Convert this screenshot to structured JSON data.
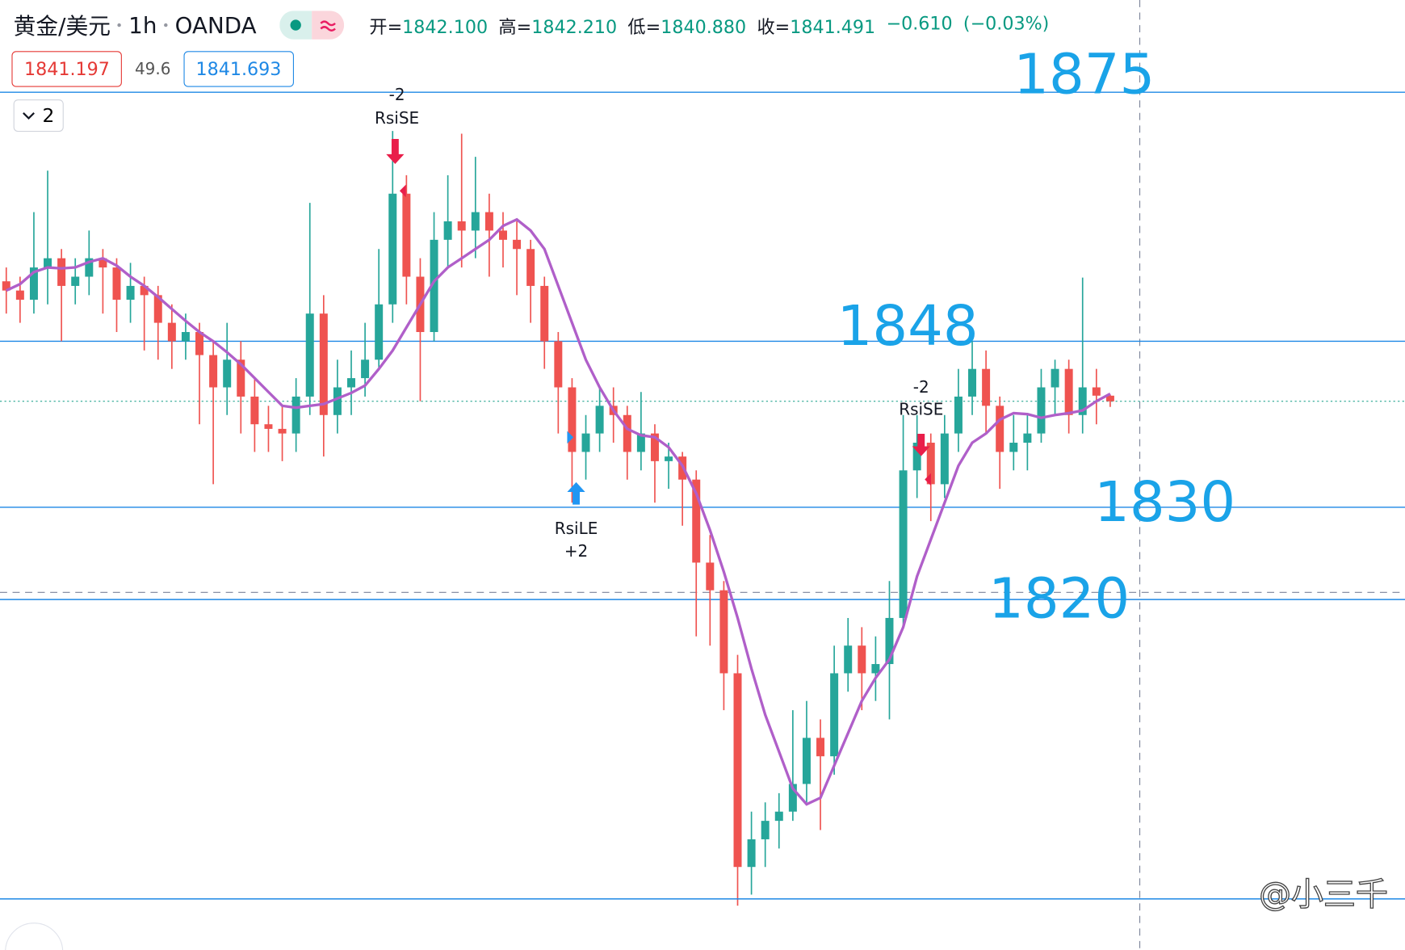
{
  "chart_data": {
    "type": "candlestick",
    "symbol": "黄金/美元",
    "interval": "1h",
    "source": "OANDA",
    "ohlc": [
      {
        "label": "开=",
        "value": "1842.100"
      },
      {
        "label": "高=",
        "value": "1842.210"
      },
      {
        "label": "低=",
        "value": "1840.880"
      },
      {
        "label": "收=",
        "value": "1841.491"
      }
    ],
    "change": "−0.610",
    "change_pct": "(−0.03%)",
    "bid": "1841.197",
    "spread": "49.6",
    "ask": "1841.693",
    "indicator_count": "2",
    "ylim": [
      1782,
      1885
    ],
    "up_color": "#26a69a",
    "down_color": "#ef5350",
    "ma_color": "#b05fc9",
    "level_color": "#1e88e5",
    "candles": [
      [
        1854.5,
        1856,
        1851,
        1853.5
      ],
      [
        1853.5,
        1855,
        1850,
        1852.5
      ],
      [
        1852.5,
        1862,
        1851,
        1856
      ],
      [
        1856,
        1866.5,
        1852,
        1857
      ],
      [
        1857,
        1858,
        1848,
        1854
      ],
      [
        1854,
        1857,
        1852,
        1855
      ],
      [
        1855,
        1860,
        1853,
        1857
      ],
      [
        1857,
        1858,
        1851,
        1856
      ],
      [
        1856,
        1857,
        1849,
        1852.5
      ],
      [
        1852.5,
        1856.5,
        1850,
        1854
      ],
      [
        1854,
        1855,
        1847,
        1853
      ],
      [
        1853,
        1854,
        1846,
        1850
      ],
      [
        1850,
        1852,
        1845,
        1848
      ],
      [
        1848,
        1851,
        1846,
        1849
      ],
      [
        1849,
        1850,
        1839,
        1846.5
      ],
      [
        1846.5,
        1848,
        1832.5,
        1843
      ],
      [
        1843,
        1850,
        1840,
        1846
      ],
      [
        1846,
        1848,
        1838,
        1842
      ],
      [
        1842,
        1844,
        1836,
        1839
      ],
      [
        1839,
        1841,
        1836,
        1838.5
      ],
      [
        1838.5,
        1841,
        1835,
        1838
      ],
      [
        1838,
        1844,
        1836,
        1842
      ],
      [
        1842,
        1863,
        1840,
        1851
      ],
      [
        1851,
        1853,
        1835.5,
        1840
      ],
      [
        1840,
        1846,
        1838,
        1843
      ],
      [
        1843,
        1847,
        1840,
        1844
      ],
      [
        1844,
        1850,
        1842,
        1846
      ],
      [
        1846,
        1858,
        1845,
        1852
      ],
      [
        1852,
        1870.8,
        1850,
        1864
      ],
      [
        1864,
        1866,
        1852,
        1855
      ],
      [
        1855,
        1857,
        1841.5,
        1849
      ],
      [
        1849,
        1862,
        1848,
        1859
      ],
      [
        1859,
        1866,
        1856,
        1861
      ],
      [
        1861,
        1870.5,
        1856,
        1860
      ],
      [
        1860,
        1868,
        1857,
        1862
      ],
      [
        1862,
        1864,
        1855,
        1860
      ],
      [
        1860,
        1862,
        1856,
        1859
      ],
      [
        1859,
        1861,
        1853,
        1858
      ],
      [
        1858,
        1859,
        1850,
        1854
      ],
      [
        1854,
        1855,
        1845,
        1848
      ],
      [
        1848,
        1849,
        1838,
        1843
      ],
      [
        1843,
        1844,
        1830.5,
        1836
      ],
      [
        1836,
        1840,
        1833,
        1838
      ],
      [
        1838,
        1843,
        1836,
        1841
      ],
      [
        1841,
        1843,
        1837,
        1840
      ],
      [
        1840,
        1841,
        1833,
        1836
      ],
      [
        1836,
        1842.5,
        1834,
        1838
      ],
      [
        1838,
        1839,
        1830.5,
        1835
      ],
      [
        1835,
        1837,
        1832,
        1835.5
      ],
      [
        1835.5,
        1836,
        1828,
        1833
      ],
      [
        1833,
        1834,
        1816,
        1824
      ],
      [
        1824,
        1827,
        1815,
        1821
      ],
      [
        1821,
        1822,
        1808,
        1812
      ],
      [
        1812,
        1814,
        1786.8,
        1791
      ],
      [
        1791,
        1797,
        1788,
        1794
      ],
      [
        1794,
        1798,
        1791,
        1796
      ],
      [
        1796,
        1799,
        1793,
        1797
      ],
      [
        1797,
        1808,
        1796,
        1800
      ],
      [
        1800,
        1809,
        1798,
        1805
      ],
      [
        1805,
        1807,
        1795,
        1803
      ],
      [
        1803,
        1815,
        1801,
        1812
      ],
      [
        1812,
        1818,
        1810,
        1815
      ],
      [
        1815,
        1817,
        1808,
        1812
      ],
      [
        1812,
        1816,
        1809,
        1813
      ],
      [
        1813,
        1822,
        1807,
        1818
      ],
      [
        1818,
        1840,
        1817,
        1834
      ],
      [
        1834,
        1840,
        1831,
        1837
      ],
      [
        1837,
        1838,
        1828.5,
        1832.5
      ],
      [
        1832.5,
        1840,
        1831,
        1838
      ],
      [
        1838,
        1845,
        1836,
        1842
      ],
      [
        1842,
        1848,
        1840,
        1845
      ],
      [
        1845,
        1847,
        1838,
        1841
      ],
      [
        1841,
        1842,
        1832,
        1836
      ],
      [
        1836,
        1840,
        1834,
        1837
      ],
      [
        1837,
        1840,
        1834,
        1838
      ],
      [
        1838,
        1845,
        1837,
        1843
      ],
      [
        1843,
        1846,
        1840,
        1845
      ],
      [
        1845,
        1846,
        1838,
        1840
      ],
      [
        1840,
        1854.9,
        1838,
        1843
      ],
      [
        1843,
        1845,
        1839,
        1842.1
      ],
      [
        1842.1,
        1842.21,
        1840.88,
        1841.491
      ]
    ],
    "ma": [
      1853.5,
      1854.2,
      1855.5,
      1856,
      1855.9,
      1856,
      1856.6,
      1857,
      1856.2,
      1855,
      1854,
      1852.8,
      1851.5,
      1850.2,
      1849,
      1848,
      1846.8,
      1845.5,
      1844,
      1842.5,
      1841,
      1840.8,
      1841,
      1841.2,
      1841.8,
      1842.4,
      1843.2,
      1845,
      1847,
      1849.5,
      1852,
      1854.5,
      1856,
      1857,
      1858,
      1859,
      1860.5,
      1861.2,
      1860,
      1858,
      1854,
      1850,
      1846,
      1843,
      1840.5,
      1838.5,
      1837.8,
      1837.6,
      1836.5,
      1834.5,
      1831.5,
      1827.5,
      1823,
      1818,
      1812.5,
      1807.5,
      1803.5,
      1799.5,
      1797.8,
      1798.5,
      1802,
      1805.5,
      1809,
      1811.5,
      1813.5,
      1817,
      1822.5,
      1826.5,
      1830.5,
      1834.5,
      1837,
      1838,
      1839.5,
      1840.2,
      1840.1,
      1839.7,
      1840,
      1840.2,
      1840.5,
      1841.5,
      1842.3
    ],
    "levels": [
      1875,
      1848,
      1830,
      1820
    ],
    "signals": [
      {
        "qty": "-2",
        "name": "RsiSE"
      },
      {
        "qty": "-2",
        "name": "RsiSE"
      },
      {
        "name": "RsiLE",
        "qty": "+2"
      }
    ],
    "watermark": "@小三千"
  }
}
